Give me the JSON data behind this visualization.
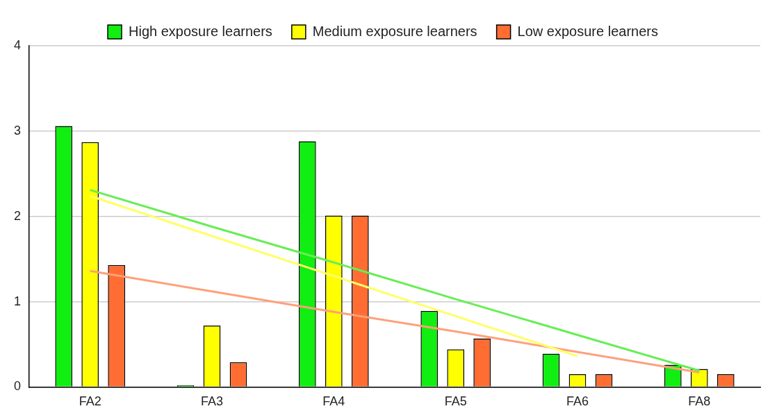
{
  "chart_data": {
    "type": "bar",
    "categories": [
      "FA2",
      "FA3",
      "FA4",
      "FA5",
      "FA6",
      "FA8"
    ],
    "series": [
      {
        "name": "High exposure learners",
        "color": "#11ee11",
        "values": [
          3.06,
          0.02,
          2.88,
          0.89,
          0.39,
          0.26
        ]
      },
      {
        "name": "Medium exposure learners",
        "color": "#ffff00",
        "values": [
          2.87,
          0.72,
          2.01,
          0.44,
          0.15,
          0.21
        ]
      },
      {
        "name": "Low exposure learners",
        "color": "#ff6d33",
        "values": [
          1.43,
          0.29,
          2.01,
          0.57,
          0.15,
          0.15
        ]
      },
      {
        "type": "line",
        "color": "#66ee55",
        "values": [
          2.31,
          1.88,
          1.46,
          1.03,
          0.61,
          0.19
        ]
      },
      {
        "type": "line",
        "color": "#ffff66",
        "values": [
          2.24,
          1.77,
          1.3,
          0.83,
          0.36,
          null
        ]
      },
      {
        "type": "line",
        "color": "#ffa07a",
        "values": [
          1.36,
          1.12,
          0.88,
          0.65,
          0.41,
          0.17
        ]
      }
    ],
    "ylim": [
      0,
      4
    ],
    "yticks": [
      0,
      1,
      2,
      3,
      4
    ],
    "grid": "y",
    "legend": "top",
    "marker": "none"
  }
}
